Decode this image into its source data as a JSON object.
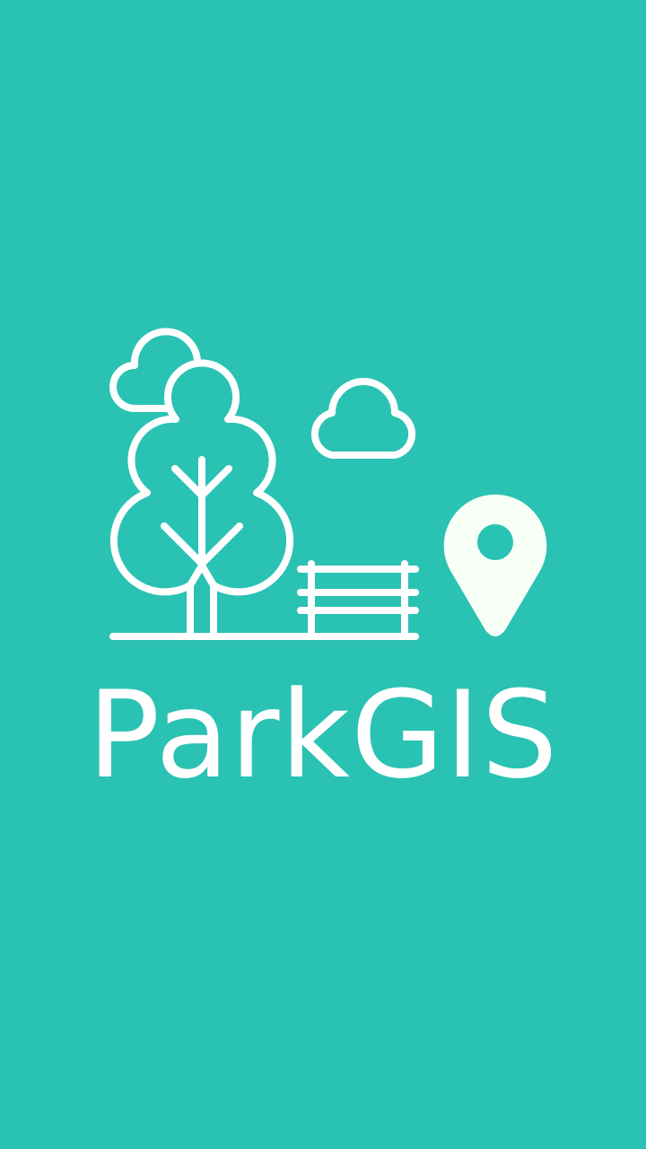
{
  "app": {
    "title": "ParkGIS"
  },
  "colors": {
    "background": "#2AC2B2",
    "foreground": "#FFFFFF",
    "pin": "#F7FFF7"
  },
  "icons": {
    "tree": "tree-icon",
    "bench": "bench-icon",
    "cloud_left": "cloud-icon",
    "cloud_right": "cloud-icon",
    "location_pin": "location-pin-icon"
  }
}
